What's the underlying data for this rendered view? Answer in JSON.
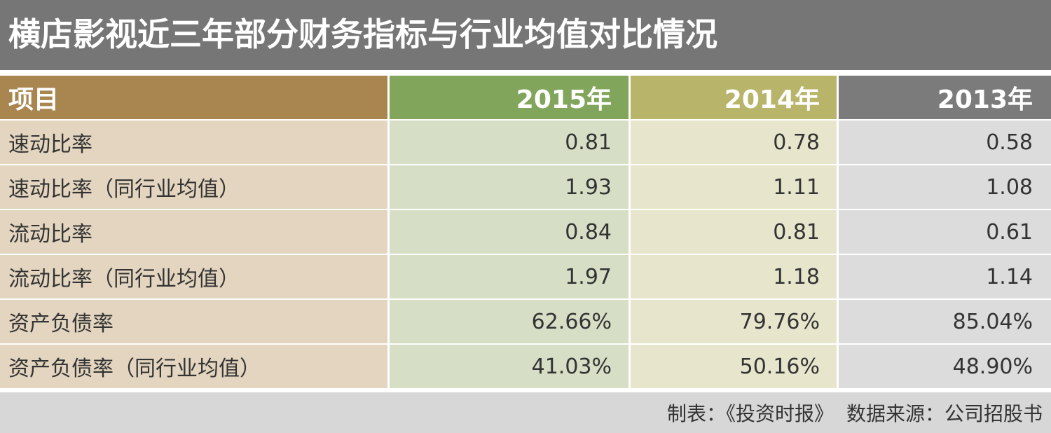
{
  "colors": {
    "title_bg": "#767676",
    "head_c1": "#a98650",
    "head_c2": "#80a55b",
    "head_c3": "#b8b56a",
    "head_c4": "#7b7b7b",
    "body_c1": "#e3d5bf",
    "body_c2": "#d6dfc6",
    "body_c3": "#e7e6cd",
    "body_c4": "#dcdcdc",
    "footer_bg": "#d7d7d7"
  },
  "chart_data": {
    "type": "table",
    "title": "横店影视近三年部分财务指标与行业均值对比情况",
    "columns": [
      "项目",
      "2015年",
      "2014年",
      "2013年"
    ],
    "rows": [
      {
        "label": "速动比率",
        "values": [
          "0.81",
          "0.78",
          "0.58"
        ]
      },
      {
        "label": "速动比率（同行业均值）",
        "values": [
          "1.93",
          "1.11",
          "1.08"
        ]
      },
      {
        "label": "流动比率",
        "values": [
          "0.84",
          "0.81",
          "0.61"
        ]
      },
      {
        "label": "流动比率（同行业均值）",
        "values": [
          "1.97",
          "1.18",
          "1.14"
        ]
      },
      {
        "label": "资产负债率",
        "values": [
          "62.66%",
          "79.76%",
          "85.04%"
        ]
      },
      {
        "label": "资产负债率（同行业均值）",
        "values": [
          "41.03%",
          "50.16%",
          "48.90%"
        ]
      }
    ]
  },
  "footer": {
    "credit": "制表：《投资时报》",
    "source": "数据来源：公司招股书"
  }
}
